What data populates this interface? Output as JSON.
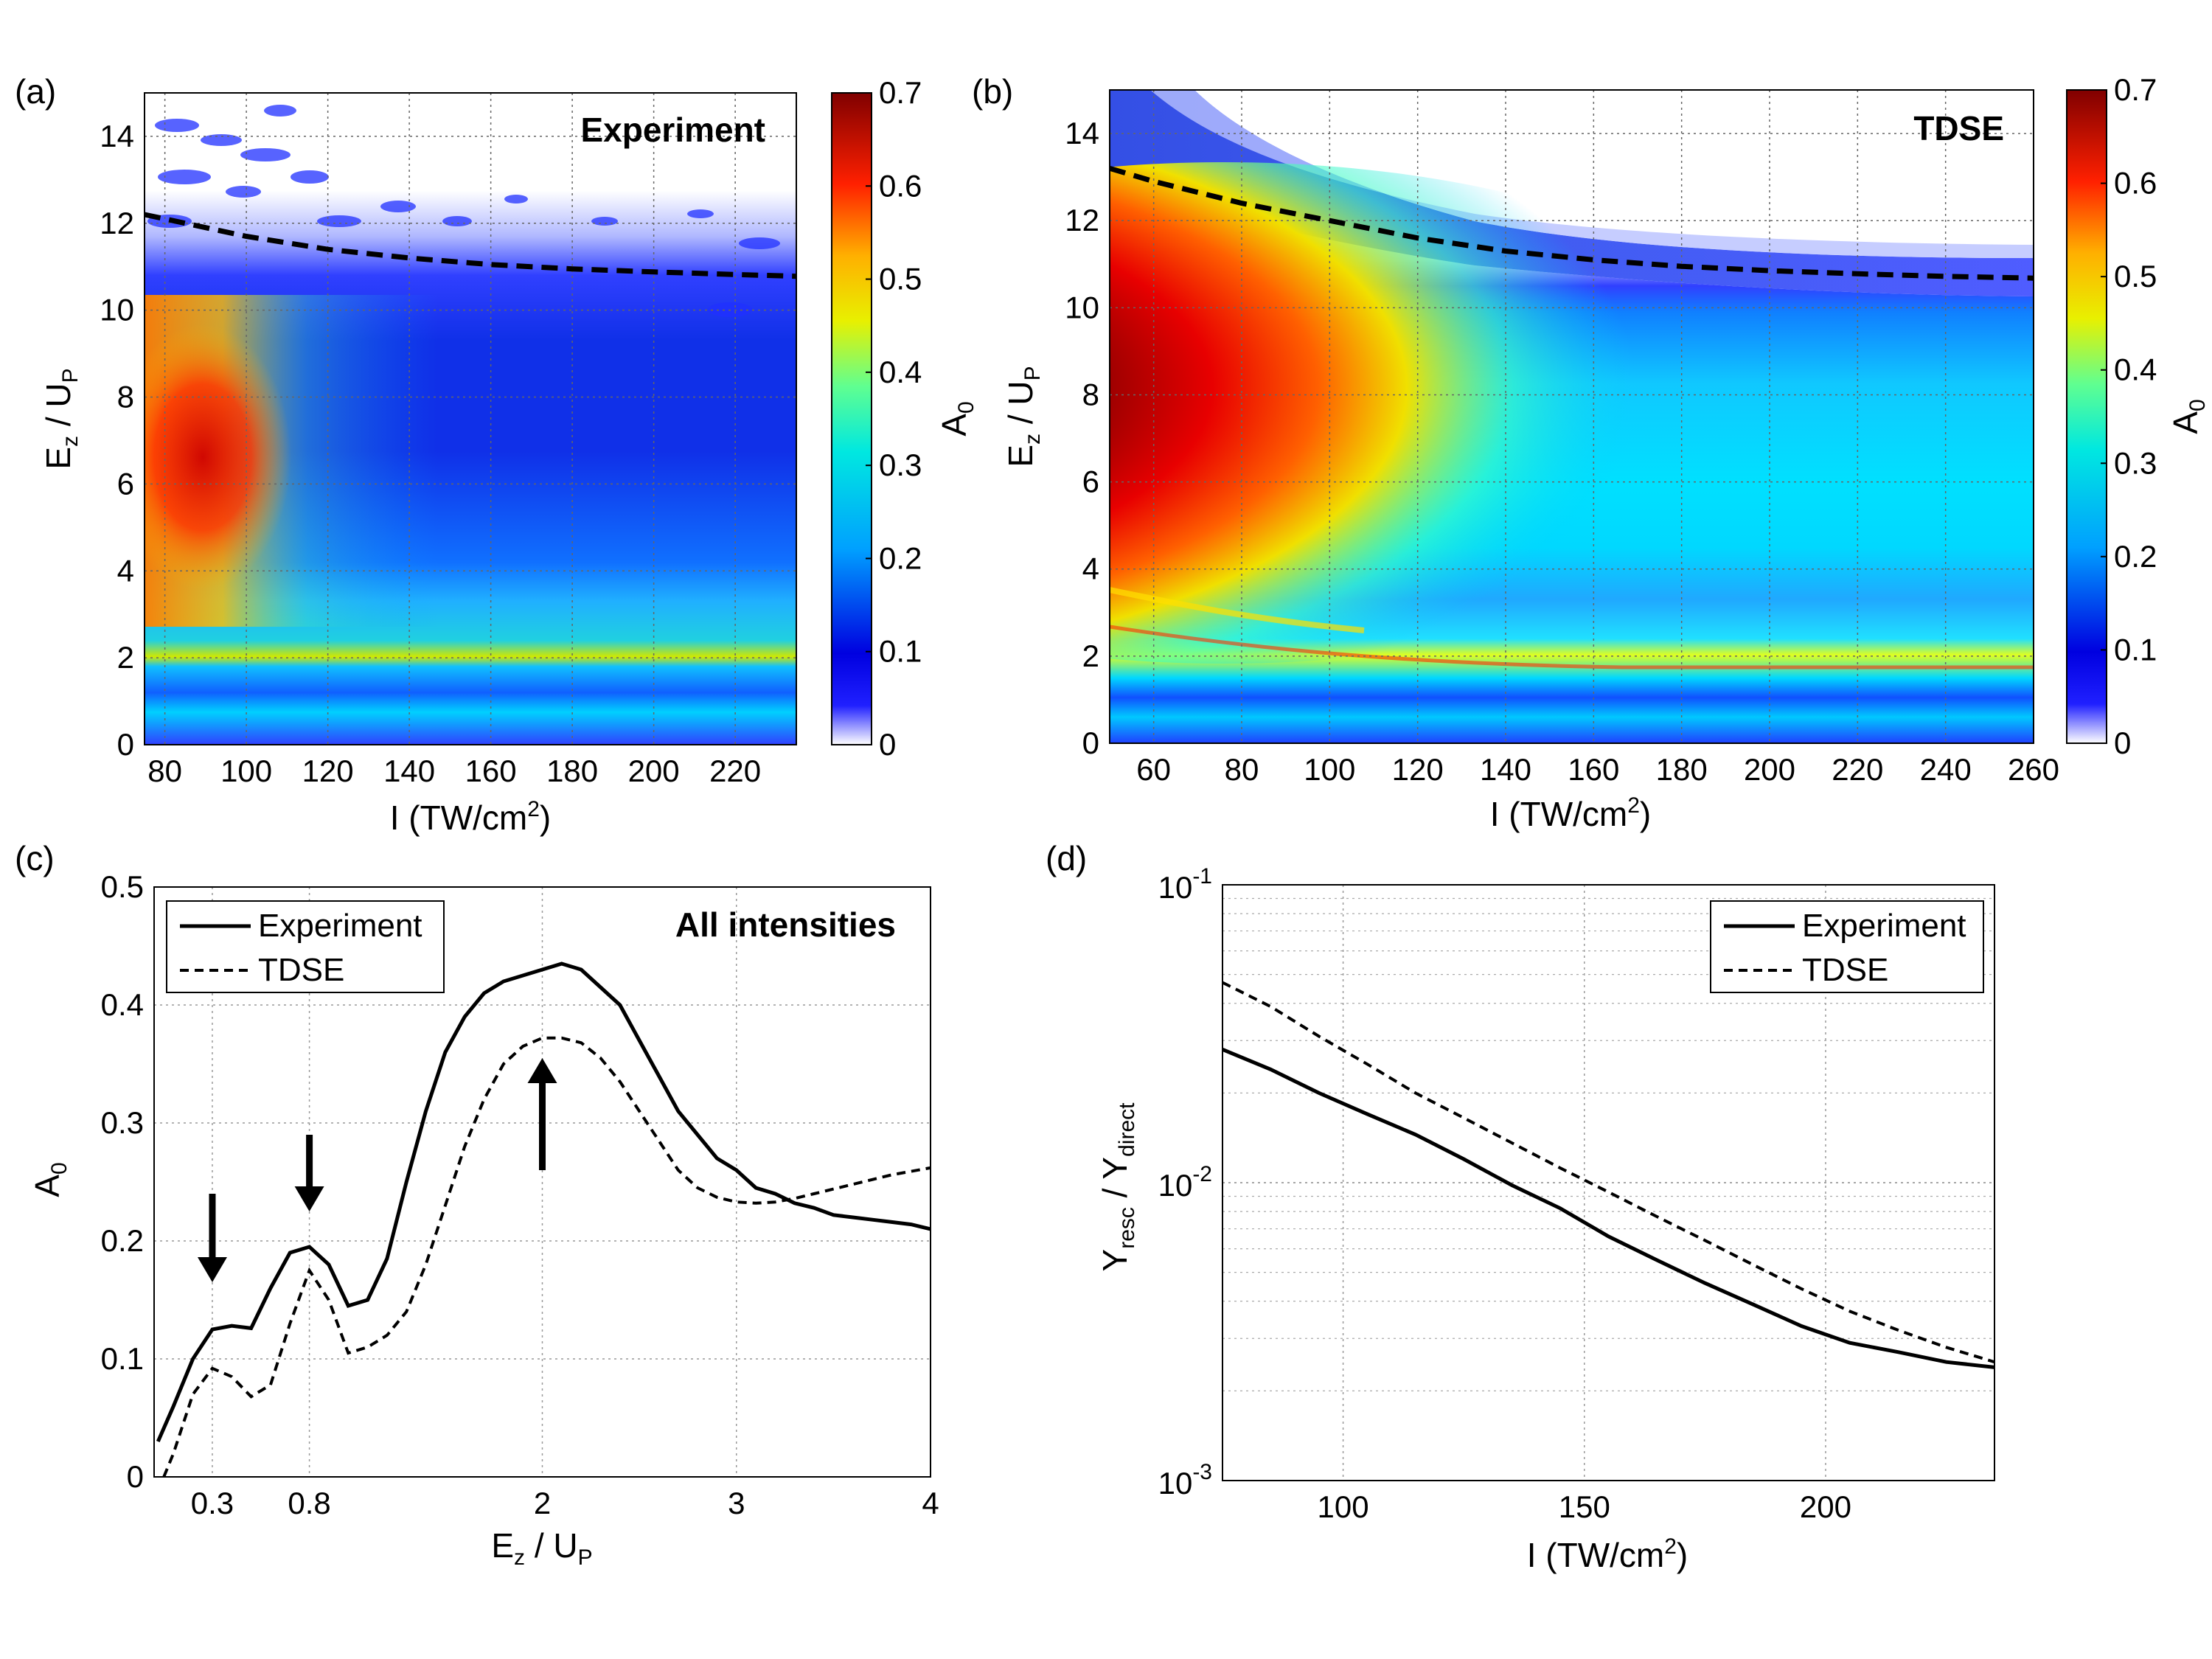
{
  "panels": {
    "a": {
      "label": "(a)",
      "inset_title": "Experiment"
    },
    "b": {
      "label": "(b)",
      "inset_title": "TDSE"
    },
    "c": {
      "label": "(c)",
      "inset_title": "All intensities"
    },
    "d": {
      "label": "(d)"
    }
  },
  "colors": {
    "experiment": "#000000",
    "tdse": "#000000",
    "grid": "#b0b0b0"
  },
  "colormap": {
    "name": "jet-with-white",
    "stops": [
      [
        0,
        "#ffffff"
      ],
      [
        0.06,
        "#2020ff"
      ],
      [
        0.14,
        "#0000e0"
      ],
      [
        0.3,
        "#00a0ff"
      ],
      [
        0.45,
        "#00e8e0"
      ],
      [
        0.55,
        "#60ff90"
      ],
      [
        0.65,
        "#e8f000"
      ],
      [
        0.75,
        "#ffb000"
      ],
      [
        0.86,
        "#ff2000"
      ],
      [
        1.0,
        "#800000"
      ]
    ]
  },
  "chart_data": [
    {
      "type": "heatmap",
      "panel": "a",
      "title": "Experiment",
      "xlabel": "I (TW/cm²)",
      "ylabel": "E_z / U_P",
      "xlim": [
        75,
        235
      ],
      "ylim": [
        0,
        15
      ],
      "xticks": [
        "80",
        "100",
        "120",
        "140",
        "160",
        "180",
        "200",
        "220"
      ],
      "yticks": [
        "0",
        "2",
        "4",
        "6",
        "8",
        "10",
        "12",
        "14"
      ],
      "colorbar": {
        "label": "A_0",
        "range": [
          0,
          0.7
        ],
        "ticks": [
          "0",
          "0.1",
          "0.2",
          "0.3",
          "0.4",
          "0.5",
          "0.6",
          "0.7"
        ]
      },
      "cutoff_curve": {
        "style": "dashed",
        "x": [
          75,
          100,
          120,
          140,
          160,
          180,
          200,
          220,
          235
        ],
        "y": [
          12.2,
          11.7,
          11.4,
          11.2,
          11.05,
          10.95,
          10.88,
          10.82,
          10.78
        ]
      }
    },
    {
      "type": "heatmap",
      "panel": "b",
      "title": "TDSE",
      "xlabel": "I (TW/cm²)",
      "ylabel": "E_z / U_P",
      "xlim": [
        50,
        260
      ],
      "ylim": [
        0,
        15
      ],
      "xticks": [
        "60",
        "80",
        "100",
        "120",
        "140",
        "160",
        "180",
        "200",
        "220",
        "240",
        "260"
      ],
      "yticks": [
        "0",
        "2",
        "4",
        "6",
        "8",
        "10",
        "12",
        "14"
      ],
      "colorbar": {
        "label": "A_0",
        "range": [
          0,
          0.7
        ],
        "ticks": [
          "0",
          "0.1",
          "0.2",
          "0.3",
          "0.4",
          "0.5",
          "0.6",
          "0.7"
        ]
      },
      "cutoff_curve": {
        "style": "dashed",
        "x": [
          50,
          60,
          80,
          100,
          120,
          140,
          160,
          180,
          200,
          220,
          240,
          260
        ],
        "y": [
          13.2,
          12.9,
          12.4,
          12.0,
          11.6,
          11.3,
          11.1,
          10.95,
          10.85,
          10.78,
          10.72,
          10.68
        ]
      }
    },
    {
      "type": "line",
      "panel": "c",
      "title": "All intensities",
      "xlabel": "E_z / U_P",
      "ylabel": "A_0",
      "xlim": [
        0,
        4
      ],
      "ylim": [
        0,
        0.5
      ],
      "xticks": [
        {
          "v": 0.3,
          "label": "0.3"
        },
        {
          "v": 0.8,
          "label": "0.8"
        },
        {
          "v": 2,
          "label": "2"
        },
        {
          "v": 3,
          "label": "3"
        },
        {
          "v": 4,
          "label": "4"
        }
      ],
      "yticks": [
        "0",
        "0.1",
        "0.2",
        "0.3",
        "0.4",
        "0.5"
      ],
      "legend": {
        "position": "top-left"
      },
      "series": [
        {
          "name": "Experiment",
          "style": "solid",
          "x": [
            0.02,
            0.1,
            0.2,
            0.3,
            0.4,
            0.5,
            0.6,
            0.7,
            0.8,
            0.9,
            1.0,
            1.1,
            1.2,
            1.3,
            1.4,
            1.5,
            1.6,
            1.7,
            1.8,
            1.9,
            2.0,
            2.1,
            2.2,
            2.3,
            2.4,
            2.5,
            2.6,
            2.7,
            2.8,
            2.9,
            3.0,
            3.1,
            3.2,
            3.3,
            3.4,
            3.5,
            3.6,
            3.7,
            3.8,
            3.9,
            4.0
          ],
          "y": [
            0.03,
            0.06,
            0.1,
            0.125,
            0.128,
            0.126,
            0.16,
            0.19,
            0.195,
            0.18,
            0.145,
            0.15,
            0.185,
            0.25,
            0.31,
            0.36,
            0.39,
            0.41,
            0.42,
            0.425,
            0.43,
            0.435,
            0.43,
            0.415,
            0.4,
            0.37,
            0.34,
            0.31,
            0.29,
            0.27,
            0.26,
            0.245,
            0.24,
            0.232,
            0.228,
            0.222,
            0.22,
            0.218,
            0.216,
            0.214,
            0.21
          ]
        },
        {
          "name": "TDSE",
          "style": "dashed",
          "x": [
            0.05,
            0.1,
            0.2,
            0.3,
            0.4,
            0.5,
            0.6,
            0.7,
            0.8,
            0.9,
            1.0,
            1.1,
            1.2,
            1.3,
            1.4,
            1.5,
            1.6,
            1.7,
            1.8,
            1.9,
            2.0,
            2.1,
            2.2,
            2.3,
            2.4,
            2.5,
            2.6,
            2.7,
            2.8,
            2.9,
            3.0,
            3.1,
            3.2,
            3.3,
            3.4,
            3.5,
            3.6,
            3.7,
            3.8,
            3.9,
            4.0
          ],
          "y": [
            0.0,
            0.02,
            0.07,
            0.092,
            0.085,
            0.068,
            0.078,
            0.13,
            0.175,
            0.15,
            0.105,
            0.11,
            0.12,
            0.14,
            0.18,
            0.23,
            0.28,
            0.32,
            0.35,
            0.365,
            0.372,
            0.372,
            0.368,
            0.355,
            0.335,
            0.31,
            0.285,
            0.26,
            0.245,
            0.237,
            0.233,
            0.232,
            0.233,
            0.236,
            0.24,
            0.244,
            0.248,
            0.252,
            0.256,
            0.259,
            0.262
          ]
        }
      ],
      "arrows": [
        {
          "x": 0.3,
          "direction": "down"
        },
        {
          "x": 0.8,
          "direction": "down"
        },
        {
          "x": 2.0,
          "direction": "up"
        }
      ]
    },
    {
      "type": "line",
      "panel": "d",
      "xlabel": "I (TW/cm²)",
      "ylabel": "Y_resc / Y_direct",
      "xlim": [
        75,
        235
      ],
      "ylim": [
        0.001,
        0.1
      ],
      "yscale": "log",
      "xticks": [
        {
          "v": 100,
          "label": "100"
        },
        {
          "v": 150,
          "label": "150"
        },
        {
          "v": 200,
          "label": "200"
        }
      ],
      "yticks": [
        {
          "v": 0.001,
          "base": "10",
          "exp": "-3"
        },
        {
          "v": 0.01,
          "base": "10",
          "exp": "-2"
        },
        {
          "v": 0.1,
          "base": "10",
          "exp": "-1"
        }
      ],
      "legend": {
        "position": "top-right"
      },
      "series": [
        {
          "name": "Experiment",
          "style": "solid",
          "x": [
            75,
            85,
            95,
            105,
            115,
            125,
            135,
            145,
            155,
            165,
            175,
            185,
            195,
            205,
            215,
            225,
            235
          ],
          "y": [
            0.028,
            0.024,
            0.02,
            0.017,
            0.0145,
            0.012,
            0.0098,
            0.0082,
            0.0066,
            0.0055,
            0.0046,
            0.0039,
            0.0033,
            0.0029,
            0.0027,
            0.0025,
            0.0024
          ]
        },
        {
          "name": "TDSE",
          "style": "dashed",
          "x": [
            75,
            85,
            95,
            105,
            115,
            125,
            135,
            145,
            155,
            165,
            175,
            185,
            195,
            205,
            215,
            225,
            235
          ],
          "y": [
            0.047,
            0.039,
            0.031,
            0.025,
            0.02,
            0.0165,
            0.0136,
            0.0112,
            0.0093,
            0.0077,
            0.0064,
            0.0053,
            0.0044,
            0.0037,
            0.0032,
            0.0028,
            0.0025
          ]
        }
      ]
    }
  ]
}
